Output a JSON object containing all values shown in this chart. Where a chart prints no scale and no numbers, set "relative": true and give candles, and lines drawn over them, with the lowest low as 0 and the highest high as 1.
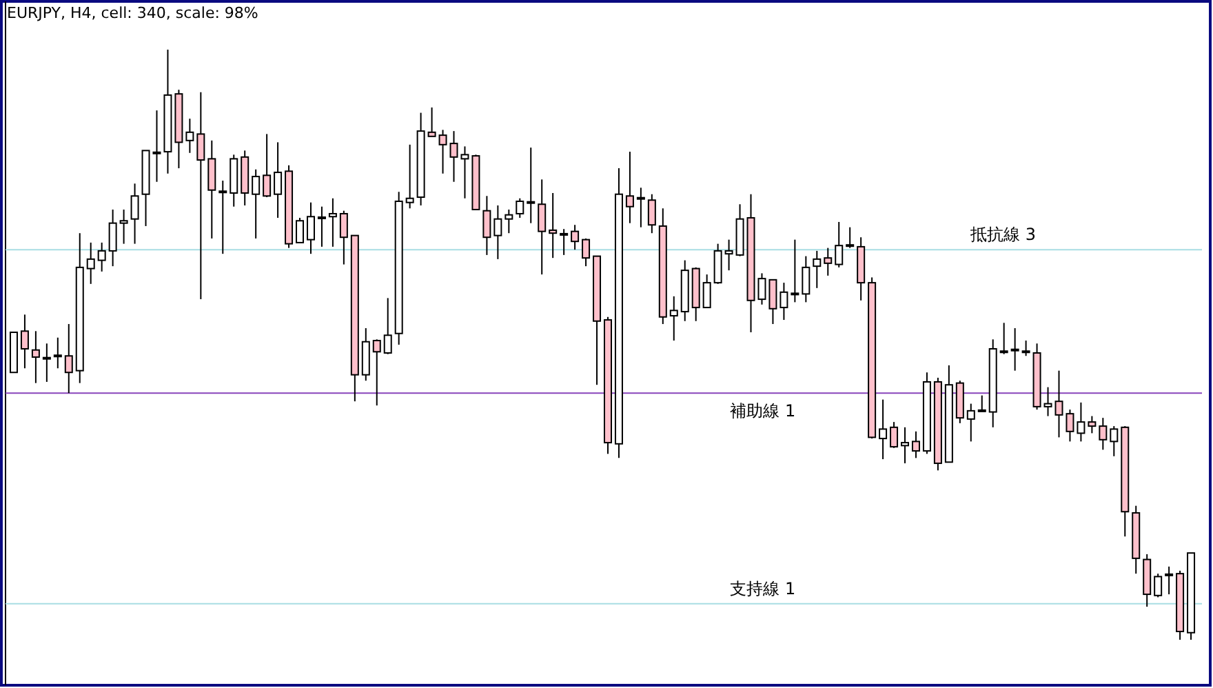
{
  "chart_data": {
    "type": "candlestick",
    "title": "EURJPY, H4, cell: 340, scale: 98%",
    "relative": true,
    "categories": [
      null,
      null,
      null,
      null,
      null,
      null,
      null,
      null,
      null,
      null,
      null,
      null,
      null,
      null,
      null,
      null,
      null,
      null,
      null,
      null,
      null,
      null,
      null,
      null,
      null,
      null,
      null,
      null,
      null,
      null,
      null,
      null,
      null,
      null,
      null,
      null,
      null,
      null,
      null,
      null,
      null,
      null,
      null,
      null,
      null,
      null,
      null,
      null,
      null,
      null,
      null,
      null,
      null,
      null,
      null,
      null,
      null,
      null,
      null,
      null,
      null,
      null,
      null,
      null,
      null,
      null,
      null,
      null,
      null,
      null,
      null,
      null,
      null,
      null,
      null,
      null,
      null,
      null,
      null,
      null,
      null,
      null,
      null,
      null,
      null,
      null,
      null,
      null,
      null,
      null,
      null,
      null,
      null,
      null,
      null,
      null,
      null,
      null,
      null,
      null,
      null,
      null,
      null,
      null,
      null,
      null,
      null,
      null
    ],
    "ohlc": [
      [
        0.453,
        0.521,
        0.453,
        0.521
      ],
      [
        0.523,
        0.551,
        0.46,
        0.493
      ],
      [
        0.491,
        0.523,
        0.435,
        0.479
      ],
      [
        0.477,
        0.502,
        0.437,
        0.477
      ],
      [
        0.481,
        0.512,
        0.46,
        0.481
      ],
      [
        0.481,
        0.535,
        0.418,
        0.453
      ],
      [
        0.456,
        0.689,
        0.435,
        0.631
      ],
      [
        0.629,
        0.673,
        0.603,
        0.645
      ],
      [
        0.643,
        0.673,
        0.624,
        0.659
      ],
      [
        0.659,
        0.729,
        0.633,
        0.706
      ],
      [
        0.706,
        0.729,
        0.671,
        0.71
      ],
      [
        0.713,
        0.773,
        0.671,
        0.752
      ],
      [
        0.755,
        0.829,
        0.701,
        0.829
      ],
      [
        0.825,
        0.897,
        0.776,
        0.825
      ],
      [
        0.827,
        1,
        0.79,
        0.923
      ],
      [
        0.925,
        0.932,
        0.799,
        0.843
      ],
      [
        0.846,
        0.883,
        0.825,
        0.86
      ],
      [
        0.857,
        0.928,
        0.577,
        0.813
      ],
      [
        0.815,
        0.846,
        0.68,
        0.762
      ],
      [
        0.759,
        0.778,
        0.654,
        0.759
      ],
      [
        0.757,
        0.822,
        0.734,
        0.815
      ],
      [
        0.818,
        0.829,
        0.736,
        0.757
      ],
      [
        0.755,
        0.797,
        0.68,
        0.785
      ],
      [
        0.787,
        0.857,
        0.75,
        0.752
      ],
      [
        0.755,
        0.843,
        0.715,
        0.792
      ],
      [
        0.794,
        0.804,
        0.664,
        0.671
      ],
      [
        0.673,
        0.715,
        0.673,
        0.71
      ],
      [
        0.678,
        0.741,
        0.654,
        0.717
      ],
      [
        0.715,
        0.734,
        0.666,
        0.715
      ],
      [
        0.717,
        0.748,
        0.666,
        0.722
      ],
      [
        0.722,
        0.727,
        0.636,
        0.682
      ],
      [
        0.685,
        0.685,
        0.404,
        0.449
      ],
      [
        0.449,
        0.528,
        0.439,
        0.505
      ],
      [
        0.507,
        0.509,
        0.397,
        0.488
      ],
      [
        0.486,
        0.579,
        0.484,
        0.516
      ],
      [
        0.519,
        0.759,
        0.5,
        0.743
      ],
      [
        0.741,
        0.839,
        0.731,
        0.748
      ],
      [
        0.75,
        0.893,
        0.736,
        0.862
      ],
      [
        0.86,
        0.902,
        0.853,
        0.853
      ],
      [
        0.855,
        0.864,
        0.79,
        0.839
      ],
      [
        0.841,
        0.862,
        0.776,
        0.818
      ],
      [
        0.815,
        0.836,
        0.748,
        0.822
      ],
      [
        0.82,
        0.822,
        0.729,
        0.729
      ],
      [
        0.727,
        0.752,
        0.652,
        0.682
      ],
      [
        0.685,
        0.736,
        0.645,
        0.713
      ],
      [
        0.713,
        0.729,
        0.689,
        0.72
      ],
      [
        0.722,
        0.748,
        0.715,
        0.743
      ],
      [
        0.741,
        0.834,
        0.706,
        0.741
      ],
      [
        0.738,
        0.78,
        0.619,
        0.692
      ],
      [
        0.694,
        0.757,
        0.647,
        0.689
      ],
      [
        0.687,
        0.696,
        0.652,
        0.687
      ],
      [
        0.692,
        0.703,
        0.661,
        0.675
      ],
      [
        0.678,
        0.68,
        0.633,
        0.647
      ],
      [
        0.65,
        0.65,
        0.432,
        0.54
      ],
      [
        0.542,
        0.547,
        0.315,
        0.334
      ],
      [
        0.332,
        0.799,
        0.308,
        0.755
      ],
      [
        0.752,
        0.827,
        0.706,
        0.734
      ],
      [
        0.748,
        0.766,
        0.699,
        0.748
      ],
      [
        0.745,
        0.755,
        0.689,
        0.703
      ],
      [
        0.701,
        0.731,
        0.535,
        0.547
      ],
      [
        0.549,
        0.582,
        0.507,
        0.558
      ],
      [
        0.556,
        0.643,
        0.54,
        0.626
      ],
      [
        0.629,
        0.631,
        0.54,
        0.563
      ],
      [
        0.563,
        0.619,
        0.563,
        0.605
      ],
      [
        0.605,
        0.671,
        0.603,
        0.659
      ],
      [
        0.654,
        0.678,
        0.626,
        0.659
      ],
      [
        0.652,
        0.738,
        0.65,
        0.713
      ],
      [
        0.715,
        0.755,
        0.521,
        0.575
      ],
      [
        0.577,
        0.621,
        0.568,
        0.612
      ],
      [
        0.61,
        0.61,
        0.535,
        0.561
      ],
      [
        0.563,
        0.605,
        0.542,
        0.589
      ],
      [
        0.586,
        0.678,
        0.572,
        0.586
      ],
      [
        0.586,
        0.65,
        0.572,
        0.631
      ],
      [
        0.633,
        0.659,
        0.596,
        0.645
      ],
      [
        0.647,
        0.664,
        0.617,
        0.638
      ],
      [
        0.636,
        0.708,
        0.631,
        0.668
      ],
      [
        0.668,
        0.699,
        0.664,
        0.668
      ],
      [
        0.666,
        0.682,
        0.575,
        0.605
      ],
      [
        0.605,
        0.614,
        0.341,
        0.343
      ],
      [
        0.341,
        0.407,
        0.306,
        0.357
      ],
      [
        0.36,
        0.369,
        0.325,
        0.327
      ],
      [
        0.329,
        0.36,
        0.299,
        0.334
      ],
      [
        0.336,
        0.353,
        0.308,
        0.32
      ],
      [
        0.32,
        0.453,
        0.315,
        0.437
      ],
      [
        0.437,
        0.444,
        0.287,
        0.299
      ],
      [
        0.301,
        0.465,
        0.301,
        0.432
      ],
      [
        0.435,
        0.439,
        0.367,
        0.376
      ],
      [
        0.374,
        0.4,
        0.336,
        0.388
      ],
      [
        0.388,
        0.414,
        0.388,
        0.388
      ],
      [
        0.386,
        0.509,
        0.36,
        0.493
      ],
      [
        0.488,
        0.537,
        0.484,
        0.488
      ],
      [
        0.491,
        0.528,
        0.456,
        0.491
      ],
      [
        0.488,
        0.507,
        0.481,
        0.488
      ],
      [
        0.486,
        0.502,
        0.39,
        0.395
      ],
      [
        0.395,
        0.428,
        0.379,
        0.4
      ],
      [
        0.404,
        0.456,
        0.343,
        0.381
      ],
      [
        0.383,
        0.39,
        0.336,
        0.353
      ],
      [
        0.35,
        0.402,
        0.336,
        0.369
      ],
      [
        0.369,
        0.379,
        0.35,
        0.362
      ],
      [
        0.362,
        0.376,
        0.322,
        0.339
      ],
      [
        0.336,
        0.362,
        0.311,
        0.357
      ],
      [
        0.36,
        0.362,
        0.175,
        0.217
      ],
      [
        0.215,
        0.227,
        0.112,
        0.138
      ],
      [
        0.136,
        0.145,
        0.056,
        0.077
      ],
      [
        0.075,
        0.112,
        0.072,
        0.107
      ],
      [
        0.11,
        0.124,
        0.077,
        0.11
      ],
      [
        0.112,
        0.117,
        0,
        0.014
      ],
      [
        0.012,
        0.147,
        0,
        0.147
      ]
    ],
    "colors": [
      "#ffffff",
      "#ffc0cb",
      "#ffc0cb",
      "#ffffff",
      "#ffffff",
      "#ffc0cb",
      "#ffffff",
      "#ffffff",
      "#ffffff",
      "#ffffff",
      "#ffffff",
      "#ffffff",
      "#ffffff",
      "#ffffff",
      "#ffffff",
      "#ffc0cb",
      "#ffffff",
      "#ffc0cb",
      "#ffc0cb",
      "#ffffff",
      "#ffffff",
      "#ffc0cb",
      "#ffffff",
      "#ffc0cb",
      "#ffffff",
      "#ffc0cb",
      "#ffffff",
      "#ffffff",
      "#ffffff",
      "#ffffff",
      "#ffc0cb",
      "#ffc0cb",
      "#ffffff",
      "#ffc0cb",
      "#ffffff",
      "#ffffff",
      "#ffffff",
      "#ffffff",
      "#ffc0cb",
      "#ffc0cb",
      "#ffc0cb",
      "#ffffff",
      "#ffc0cb",
      "#ffc0cb",
      "#ffffff",
      "#ffffff",
      "#ffffff",
      "#ffffff",
      "#ffc0cb",
      "#ffc0cb",
      "#ffffff",
      "#ffc0cb",
      "#ffc0cb",
      "#ffc0cb",
      "#ffc0cb",
      "#ffffff",
      "#ffc0cb",
      "#ffffff",
      "#ffc0cb",
      "#ffc0cb",
      "#ffffff",
      "#ffffff",
      "#ffc0cb",
      "#ffffff",
      "#ffffff",
      "#ffffff",
      "#ffffff",
      "#ffc0cb",
      "#ffffff",
      "#ffc0cb",
      "#ffffff",
      "#ffffff",
      "#ffffff",
      "#ffffff",
      "#ffc0cb",
      "#ffffff",
      "#ffffff",
      "#ffc0cb",
      "#ffc0cb",
      "#ffffff",
      "#ffc0cb",
      "#ffffff",
      "#ffc0cb",
      "#ffffff",
      "#ffc0cb",
      "#ffffff",
      "#ffc0cb",
      "#ffffff",
      "#ffffff",
      "#ffffff",
      "#ffffff",
      "#ffffff",
      "#ffffff",
      "#ffc0cb",
      "#ffffff",
      "#ffc0cb",
      "#ffc0cb",
      "#ffffff",
      "#ffc0cb",
      "#ffc0cb",
      "#ffffff",
      "#ffc0cb",
      "#ffc0cb",
      "#ffc0cb",
      "#ffffff",
      "#ffffff",
      "#ffc0cb",
      "#ffffff"
    ],
    "ref_lines": [
      {
        "axis": "y",
        "value": 0.661,
        "label": "抵抗線 3",
        "color": "#a8dde3"
      },
      {
        "axis": "y",
        "value": 0.418,
        "label": "補助線 1",
        "color": "#8844bb"
      },
      {
        "axis": "y",
        "value": 0.061,
        "label": "支持線 1",
        "color": "#a8dde3"
      }
    ],
    "grid": false
  }
}
